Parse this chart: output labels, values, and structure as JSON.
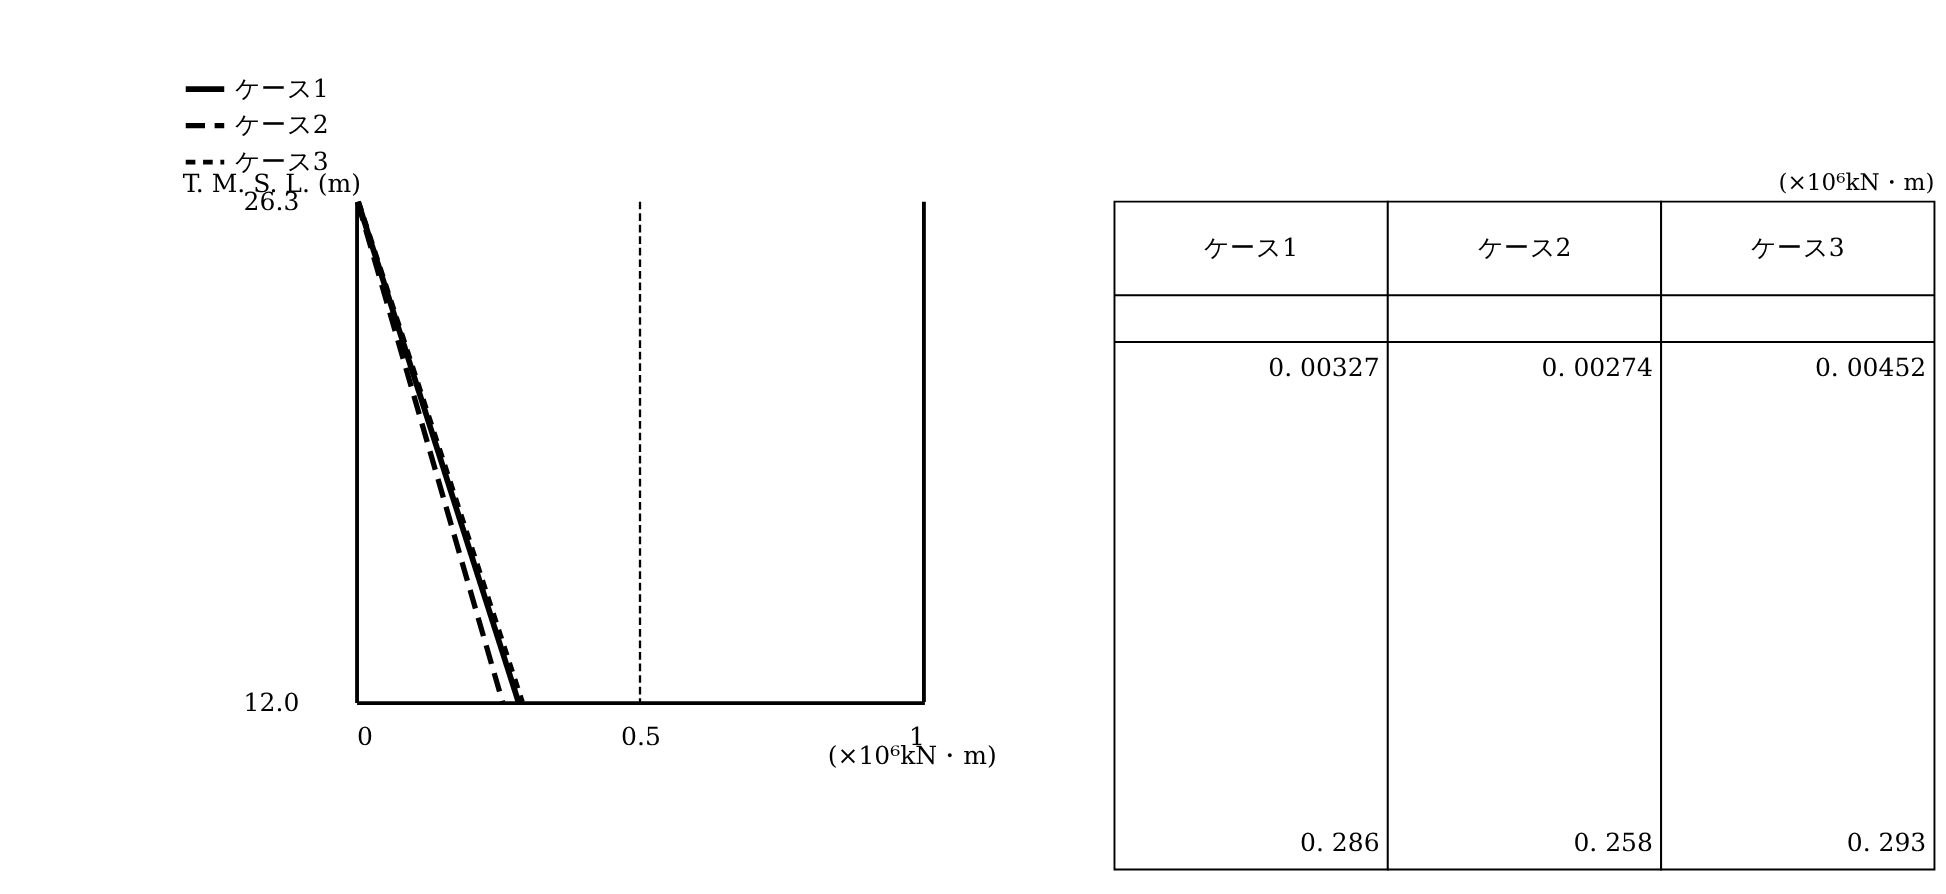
{
  "chart_data": {
    "type": "line",
    "ylabel": "T. M. S. L. (m)",
    "xlabel": "(×10⁶kN・m)",
    "xlim": [
      0,
      1
    ],
    "xticks": [
      0,
      0.5,
      1
    ],
    "ylim": [
      12.0,
      26.3
    ],
    "yticks": [
      {
        "value": 12.0,
        "label": "12.0"
      },
      {
        "value": 26.3,
        "label": "26.3"
      }
    ],
    "grid": false,
    "legend": "top left",
    "series": [
      {
        "name": "ケース1",
        "color": "#000000",
        "line_style": "solid",
        "x": [
          0.00327,
          0.286
        ],
        "values": [
          26.3,
          12.0
        ]
      },
      {
        "name": "ケース2",
        "color": "#000000",
        "line_style": "dashed",
        "x": [
          0.00274,
          0.258
        ],
        "values": [
          26.3,
          12.0
        ]
      },
      {
        "name": "ケース3",
        "color": "#000000",
        "line_style": "dotted",
        "x": [
          0.00452,
          0.293
        ],
        "values": [
          26.3,
          12.0
        ]
      }
    ],
    "ref_lines": [
      {
        "axis": "x",
        "value": 0.5,
        "line_style": "dashed"
      }
    ],
    "annotations": [
      "(×10⁶kN・m)",
      "0. 00327",
      "0. 00274",
      "0. 00452",
      "0. 286",
      "0. 258",
      "0. 293"
    ]
  }
}
